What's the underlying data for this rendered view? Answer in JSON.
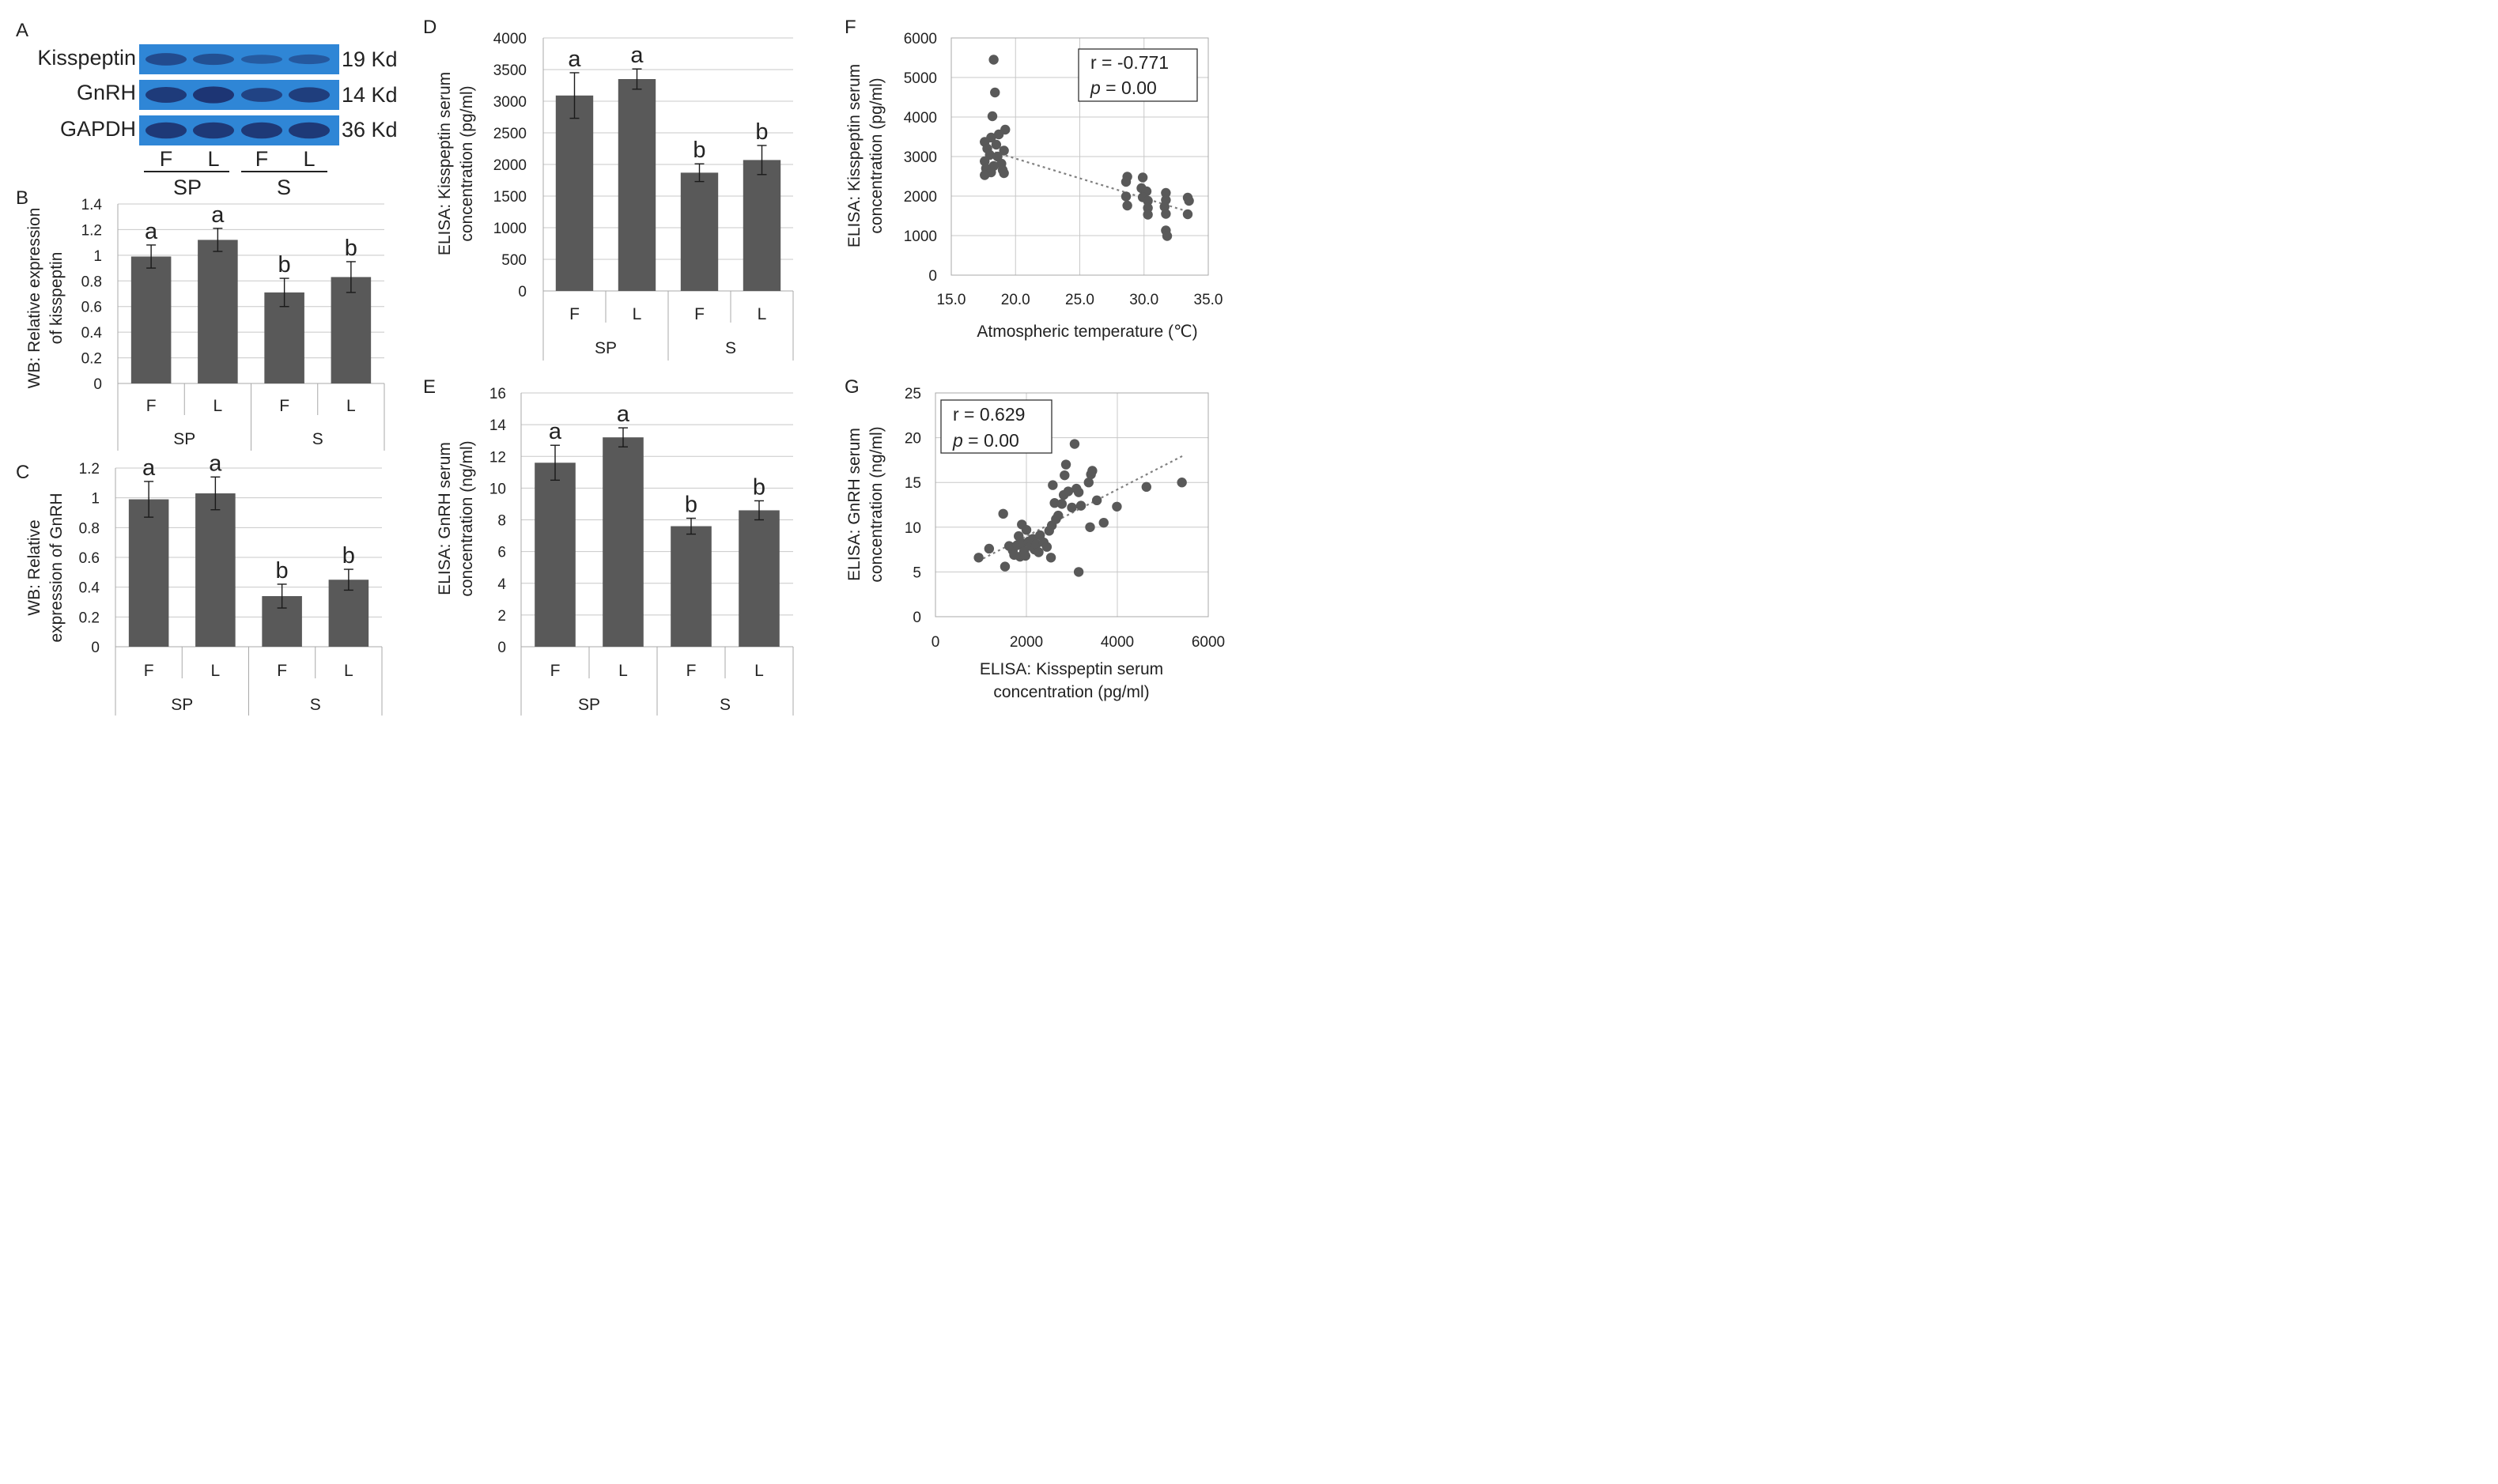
{
  "colors": {
    "bar": "#595959",
    "point": "#595959",
    "trend": "#808080",
    "blot_background": "#2f86d6",
    "blot_band": "#1c2f6b"
  },
  "western_blot": {
    "panel_letter": "A",
    "rows": [
      {
        "protein": "Kisspeptin",
        "size": "19 Kd",
        "band_intensity": [
          0.55,
          0.45,
          0.25,
          0.3
        ]
      },
      {
        "protein": "GnRH",
        "size": "14 Kd",
        "band_intensity": [
          0.85,
          0.95,
          0.7,
          0.8
        ]
      },
      {
        "protein": "GAPDH",
        "size": "36 Kd",
        "band_intensity": [
          0.9,
          0.9,
          0.9,
          0.9
        ]
      }
    ],
    "lanes": [
      "F",
      "L",
      "F",
      "L"
    ],
    "groups": [
      "SP",
      "S"
    ]
  },
  "chart_data": [
    {
      "id": "B",
      "panel_letter": "B",
      "type": "bar",
      "ylabel": [
        "WB: Relative expression",
        "of kisspeptin"
      ],
      "ylim": [
        0,
        1.4
      ],
      "yticks": [
        "0",
        "0.2",
        "0.4",
        "0.6",
        "0.8",
        "1",
        "1.2",
        "1.4"
      ],
      "categories": [
        "F",
        "L",
        "F",
        "L"
      ],
      "groups": [
        "SP",
        "S"
      ],
      "values": [
        0.99,
        1.12,
        0.71,
        0.83
      ],
      "errors": [
        0.09,
        0.09,
        0.11,
        0.12
      ],
      "letters": [
        "a",
        "a",
        "b",
        "b"
      ]
    },
    {
      "id": "C",
      "panel_letter": "C",
      "type": "bar",
      "ylabel": [
        "WB: Relative",
        "expression of GnRH"
      ],
      "ylim": [
        0,
        1.2
      ],
      "yticks": [
        "0",
        "0.2",
        "0.4",
        "0.6",
        "0.8",
        "1",
        "1.2"
      ],
      "categories": [
        "F",
        "L",
        "F",
        "L"
      ],
      "groups": [
        "SP",
        "S"
      ],
      "values": [
        0.99,
        1.03,
        0.34,
        0.45
      ],
      "errors": [
        0.12,
        0.11,
        0.08,
        0.07
      ],
      "letters": [
        "a",
        "a",
        "b",
        "b"
      ]
    },
    {
      "id": "D",
      "panel_letter": "D",
      "type": "bar",
      "ylabel": [
        "ELISA: Kisspeptin serum",
        "concentration (pg/ml)"
      ],
      "ylim": [
        0,
        4000
      ],
      "yticks": [
        "0",
        "500",
        "1000",
        "1500",
        "2000",
        "2500",
        "3000",
        "3500",
        "4000"
      ],
      "categories": [
        "F",
        "L",
        "F",
        "L"
      ],
      "groups": [
        "SP",
        "S"
      ],
      "values": [
        3090,
        3350,
        1870,
        2070
      ],
      "errors": [
        360,
        160,
        140,
        230
      ],
      "letters": [
        "a",
        "a",
        "b",
        "b"
      ]
    },
    {
      "id": "E",
      "panel_letter": "E",
      "type": "bar",
      "ylabel": [
        "ELISA: GnRH serum",
        "concentration (ng/ml)"
      ],
      "ylim": [
        0,
        16
      ],
      "yticks": [
        "0",
        "2",
        "4",
        "6",
        "8",
        "10",
        "12",
        "14",
        "16"
      ],
      "categories": [
        "F",
        "L",
        "F",
        "L"
      ],
      "groups": [
        "SP",
        "S"
      ],
      "values": [
        11.6,
        13.2,
        7.6,
        8.6
      ],
      "errors": [
        1.1,
        0.6,
        0.5,
        0.6
      ],
      "letters": [
        "a",
        "a",
        "b",
        "b"
      ]
    },
    {
      "id": "F",
      "panel_letter": "F",
      "type": "scatter",
      "xlabel": "Atmospheric temperature (℃)",
      "ylabel": [
        "ELISA: Kisspeptin serum",
        "concentration (pg/ml)"
      ],
      "xlim": [
        15,
        35
      ],
      "ylim": [
        0,
        6000
      ],
      "xticks": [
        "15.0",
        "20.0",
        "25.0",
        "30.0",
        "35.0"
      ],
      "yticks": [
        "0",
        "1000",
        "2000",
        "3000",
        "4000",
        "5000",
        "6000"
      ],
      "stats": {
        "r": "r = -0.771",
        "p_symbol": "p",
        "p_value": " = 0.00"
      },
      "trend": {
        "x1": 18,
        "y1": 3150,
        "x2": 33.5,
        "y2": 1600
      },
      "points": [
        [
          18.3,
          5450
        ],
        [
          18.4,
          4620
        ],
        [
          18.2,
          4020
        ],
        [
          19.2,
          3680
        ],
        [
          18.7,
          3560
        ],
        [
          18.1,
          3480
        ],
        [
          17.6,
          3370
        ],
        [
          18.5,
          3300
        ],
        [
          17.8,
          3200
        ],
        [
          19.1,
          3150
        ],
        [
          18.0,
          3040
        ],
        [
          18.6,
          3000
        ],
        [
          17.6,
          2880
        ],
        [
          18.9,
          2820
        ],
        [
          18.3,
          2760
        ],
        [
          17.7,
          2700
        ],
        [
          19.0,
          2660
        ],
        [
          18.1,
          2600
        ],
        [
          17.6,
          2530
        ],
        [
          19.1,
          2580
        ],
        [
          28.7,
          2490
        ],
        [
          29.9,
          2470
        ],
        [
          28.6,
          2360
        ],
        [
          29.8,
          2200
        ],
        [
          30.2,
          2120
        ],
        [
          31.7,
          2080
        ],
        [
          33.4,
          1960
        ],
        [
          28.6,
          1990
        ],
        [
          29.9,
          1970
        ],
        [
          30.3,
          1880
        ],
        [
          31.7,
          1900
        ],
        [
          33.5,
          1880
        ],
        [
          28.7,
          1760
        ],
        [
          30.3,
          1700
        ],
        [
          31.6,
          1730
        ],
        [
          30.3,
          1530
        ],
        [
          31.7,
          1550
        ],
        [
          33.4,
          1540
        ],
        [
          31.7,
          1130
        ],
        [
          31.8,
          990
        ]
      ]
    },
    {
      "id": "G",
      "panel_letter": "G",
      "type": "scatter",
      "xlabel": [
        "ELISA: Kisspeptin serum",
        "concentration (pg/ml)"
      ],
      "ylabel": [
        "ELISA: GnRH serum",
        "concentration (ng/ml)"
      ],
      "xlim": [
        0,
        6000
      ],
      "ylim": [
        0,
        25
      ],
      "xticks": [
        "0",
        "2000",
        "4000",
        "6000"
      ],
      "yticks": [
        "0",
        "5",
        "10",
        "15",
        "20",
        "25"
      ],
      "stats": {
        "r": "r = 0.629",
        "p_symbol": "p",
        "p_value": " = 0.00"
      },
      "trend": {
        "x1": 1050,
        "y1": 6.5,
        "x2": 5450,
        "y2": 18.0
      },
      "points": [
        [
          950,
          6.6
        ],
        [
          1180,
          7.6
        ],
        [
          1490,
          11.5
        ],
        [
          1530,
          5.6
        ],
        [
          1620,
          7.9
        ],
        [
          1700,
          7.4
        ],
        [
          1730,
          6.9
        ],
        [
          1800,
          8.0
        ],
        [
          1830,
          9.0
        ],
        [
          1860,
          6.7
        ],
        [
          1900,
          10.3
        ],
        [
          1920,
          8.2
        ],
        [
          1950,
          7.3
        ],
        [
          1980,
          6.8
        ],
        [
          2000,
          9.7
        ],
        [
          2050,
          8.4
        ],
        [
          2100,
          7.9
        ],
        [
          2140,
          8.7
        ],
        [
          2180,
          7.5
        ],
        [
          2220,
          8.1
        ],
        [
          2270,
          7.2
        ],
        [
          2300,
          9.1
        ],
        [
          2380,
          8.3
        ],
        [
          2450,
          7.8
        ],
        [
          2500,
          9.6
        ],
        [
          2540,
          6.6
        ],
        [
          2560,
          10.2
        ],
        [
          2580,
          14.7
        ],
        [
          2620,
          12.7
        ],
        [
          2650,
          10.9
        ],
        [
          2700,
          11.3
        ],
        [
          2780,
          12.6
        ],
        [
          2820,
          13.6
        ],
        [
          2840,
          15.8
        ],
        [
          2870,
          17.0
        ],
        [
          2920,
          14.0
        ],
        [
          3000,
          12.2
        ],
        [
          3060,
          19.3
        ],
        [
          3100,
          14.3
        ],
        [
          3150,
          13.9
        ],
        [
          3150,
          5.0
        ],
        [
          3200,
          12.4
        ],
        [
          3370,
          15.0
        ],
        [
          3420,
          15.9
        ],
        [
          3450,
          16.3
        ],
        [
          3400,
          10.0
        ],
        [
          3550,
          13.0
        ],
        [
          3700,
          10.5
        ],
        [
          3990,
          12.3
        ],
        [
          4640,
          14.5
        ],
        [
          5420,
          15.0
        ]
      ]
    }
  ]
}
